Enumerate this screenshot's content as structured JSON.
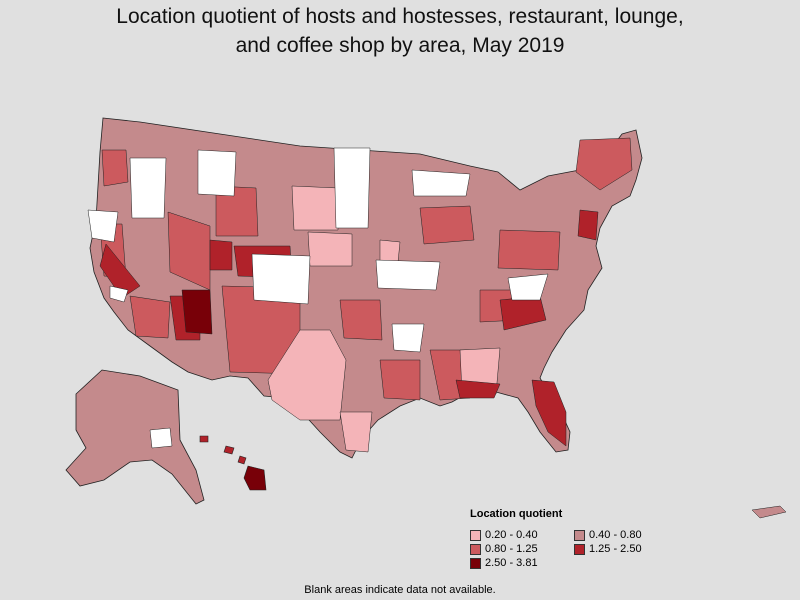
{
  "title_line1": "Location quotient of hosts and hostesses, restaurant, lounge,",
  "title_line2": "and coffee shop by area, May 2019",
  "legend": {
    "title": "Location quotient",
    "items": [
      {
        "label": "0.20 - 0.40",
        "color": "#f4b4b8"
      },
      {
        "label": "0.40 - 0.80",
        "color": "#c48a8c"
      },
      {
        "label": "0.80 - 1.25",
        "color": "#cc5a5e"
      },
      {
        "label": "1.25 - 2.50",
        "color": "#b0222a"
      },
      {
        "label": "2.50 - 3.81",
        "color": "#780008"
      }
    ]
  },
  "note": "Blank areas indicate data not available.",
  "colors": {
    "background": "#e0e0e0",
    "no_data": "#ffffff",
    "border": "#222222"
  }
}
